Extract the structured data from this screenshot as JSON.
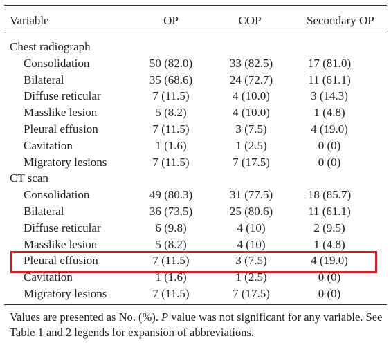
{
  "table": {
    "header": [
      "Variable",
      "OP",
      "COP",
      "Secondary OP"
    ],
    "sections": [
      {
        "title": "Chest radiograph",
        "rows": [
          [
            "Consolidation",
            "50 (82.0)",
            "33 (82.5)",
            "17 (81.0)"
          ],
          [
            "Bilateral",
            "35 (68.6)",
            "24 (72.7)",
            "11 (61.1)"
          ],
          [
            "Diffuse reticular",
            "7 (11.5)",
            "4 (10.0)",
            "3 (14.3)"
          ],
          [
            "Masslike lesion",
            "5 (8.2)",
            "4 (10.0)",
            "1 (4.8)"
          ],
          [
            "Pleural effusion",
            "7 (11.5)",
            "3 (7.5)",
            "4 (19.0)"
          ],
          [
            "Cavitation",
            "1 (1.6)",
            "1 (2.5)",
            "0 (0)"
          ],
          [
            "Migratory lesions",
            "7 (11.5)",
            "7 (17.5)",
            "0 (0)"
          ]
        ]
      },
      {
        "title": "CT scan",
        "rows": [
          [
            "Consolidation",
            "49 (80.3)",
            "31 (77.5)",
            "18 (85.7)"
          ],
          [
            "Bilateral",
            "36 (73.5)",
            "25 (80.6)",
            "11 (61.1)"
          ],
          [
            "Diffuse reticular",
            "6 (9.8)",
            "4 (10)",
            "2 (9.5)"
          ],
          [
            "Masslike lesion",
            "5 (8.2)",
            "4 (10)",
            "1 (4.8)"
          ],
          [
            "Pleural effusion",
            "7 (11.5)",
            "3 (7.5)",
            "4 (19.0)"
          ],
          [
            "Cavitation",
            "1 (1.6)",
            "1 (2.5)",
            "0 (0)"
          ],
          [
            "Migratory lesions",
            "7 (11.5)",
            "7 (17.5)",
            "0 (0)"
          ]
        ]
      }
    ]
  },
  "footnote": [
    "Values are presented as No. (%).",
    "P",
    "value was not significant for any variable. See Table 1 and 2 legends for expansion of abbreviations."
  ]
}
